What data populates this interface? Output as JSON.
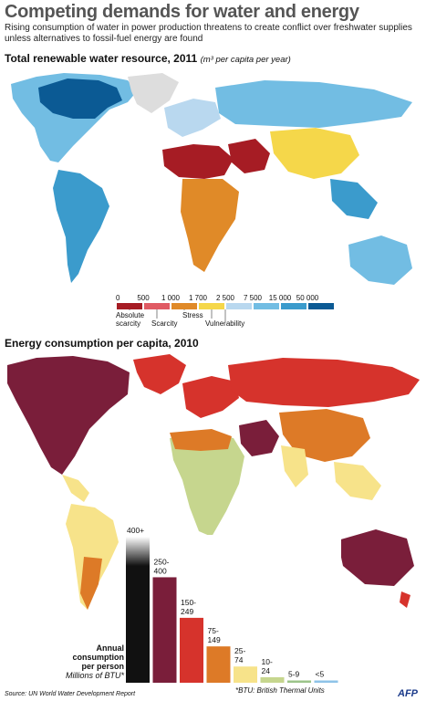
{
  "title": "Competing demands for water and energy",
  "subtitle": "Rising consumption of water in power production threatens to create conflict over freshwater supplies unless alternatives to fossil-fuel energy are found",
  "water_section": {
    "title": "Total renewable water resource, 2011",
    "unit": "(m³ per capita per year)"
  },
  "energy_section": {
    "title": "Energy consumption per capita, 2010",
    "axis_title_1": "Annual",
    "axis_title_2": "consumption",
    "axis_title_3": "per person",
    "axis_title_4": "Millions of BTU*"
  },
  "footnote": "*BTU: British Thermal Units",
  "source": "Source: UN World Water Development Report",
  "logo": "AFP",
  "colors": {
    "ocean": "#ffffff",
    "water_land_base": "#5bafd8",
    "energy_land_base": "#f4d27a"
  },
  "chart_data": [
    {
      "type": "heatmap",
      "title": "Total renewable water resource, 2011",
      "unit": "m³ per capita per year",
      "scale_ticks": [
        "0",
        "500",
        "1 000",
        "1 700",
        "2 500",
        "7 500",
        "15 000",
        "50 000"
      ],
      "bins": [
        {
          "from": 0,
          "to": 500,
          "color": "#a61c24"
        },
        {
          "from": 500,
          "to": 1000,
          "color": "#e05a63"
        },
        {
          "from": 1000,
          "to": 1700,
          "color": "#e08a28"
        },
        {
          "from": 1700,
          "to": 2500,
          "color": "#f5d74a"
        },
        {
          "from": 2500,
          "to": 7500,
          "color": "#b9d8ef"
        },
        {
          "from": 7500,
          "to": 15000,
          "color": "#72bde3"
        },
        {
          "from": 15000,
          "to": 50000,
          "color": "#3b9bcc"
        },
        {
          "from": 50000,
          "to": null,
          "color": "#0b5a94"
        }
      ],
      "categories": [
        {
          "label": "Absolute scarcity",
          "line2": "scarcity",
          "line1": "Absolute"
        },
        {
          "label": "Scarcity"
        },
        {
          "label": "Stress"
        },
        {
          "label": "Vulnerability"
        }
      ]
    },
    {
      "type": "bar",
      "title": "Energy consumption per capita, 2010",
      "ylabel": "Annual consumption per person Millions of BTU*",
      "categories": [
        "400+",
        "250-400",
        "150-249",
        "75-149",
        "25-74",
        "10-24",
        "5-9",
        "<5"
      ],
      "label_lines": [
        [
          "400+"
        ],
        [
          "250-",
          "400"
        ],
        [
          "150-",
          "249"
        ],
        [
          "75-",
          "149"
        ],
        [
          "25-",
          "74"
        ],
        [
          "10-",
          "24"
        ],
        [
          "5-9"
        ],
        [
          "<5"
        ]
      ],
      "values": [
        450,
        325,
        200,
        112,
        50,
        17,
        7,
        2.5
      ],
      "colors": [
        "#111111",
        "#7a1e3a",
        "#d6332c",
        "#dd7a27",
        "#f7e38a",
        "#c6d68e",
        "#9cc48a",
        "#8ec3e8"
      ]
    }
  ]
}
